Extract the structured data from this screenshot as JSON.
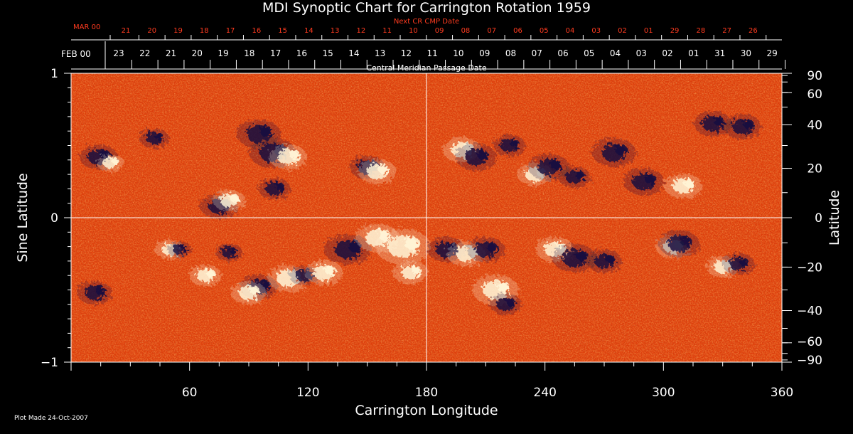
{
  "colors": {
    "background": "#000000",
    "axis": "#ffffff",
    "next_cr_text": "#ff3b1f",
    "map_base": "#e0400d",
    "positive_polarity": "#fff4d6",
    "negative_polarity": "#1a1040"
  },
  "chart_data": {
    "type": "heatmap",
    "title": "MDI Synoptic Chart for Carrington Rotation 1959",
    "xlabel": "Carrington Longitude",
    "ylabel_left": "Sine Latitude",
    "ylabel_right": "Latitude",
    "xlim": [
      0,
      360
    ],
    "ylim": [
      -1,
      1
    ],
    "x_ticks": [
      60,
      120,
      180,
      240,
      300,
      360
    ],
    "y_ticks_left": [
      {
        "value": 1,
        "label": "1"
      },
      {
        "value": 0,
        "label": "0"
      },
      {
        "value": -1,
        "label": "−1"
      }
    ],
    "y_ticks_right": [
      90,
      60,
      40,
      20,
      0,
      -20,
      -40,
      -60,
      -90
    ],
    "grid": {
      "zero_latitude_line": true,
      "central_meridian_line": 180
    },
    "top_axis_cmp": {
      "label": "Central Meridian Passage Date",
      "month_label": "FEB 00",
      "days": [
        "23",
        "22",
        "21",
        "20",
        "19",
        "18",
        "17",
        "16",
        "15",
        "14",
        "13",
        "12",
        "11",
        "10",
        "09",
        "08",
        "07",
        "06",
        "05",
        "04",
        "03",
        "02",
        "01",
        "31",
        "30",
        "29"
      ]
    },
    "top_axis_next": {
      "label": "Next CR CMP Date",
      "month_label": "MAR 00",
      "days": [
        "21",
        "20",
        "19",
        "18",
        "17",
        "16",
        "15",
        "14",
        "13",
        "12",
        "11",
        "10",
        "09",
        "08",
        "07",
        "06",
        "05",
        "04",
        "03",
        "02",
        "01",
        "29",
        "28",
        "27",
        "26"
      ]
    },
    "active_regions": [
      {
        "lon": 14,
        "sinlat": 0.42,
        "polarity": "negative",
        "size": 1.0
      },
      {
        "lon": 20,
        "sinlat": 0.38,
        "polarity": "positive",
        "size": 0.6
      },
      {
        "lon": 42,
        "sinlat": 0.55,
        "polarity": "negative",
        "size": 0.7
      },
      {
        "lon": 75,
        "sinlat": 0.08,
        "polarity": "negative",
        "size": 1.0
      },
      {
        "lon": 80,
        "sinlat": 0.12,
        "polarity": "positive",
        "size": 0.8
      },
      {
        "lon": 95,
        "sinlat": 0.58,
        "polarity": "negative",
        "size": 1.2
      },
      {
        "lon": 102,
        "sinlat": 0.45,
        "polarity": "negative",
        "size": 1.3
      },
      {
        "lon": 110,
        "sinlat": 0.42,
        "polarity": "positive",
        "size": 1.0
      },
      {
        "lon": 103,
        "sinlat": 0.2,
        "polarity": "negative",
        "size": 0.8
      },
      {
        "lon": 150,
        "sinlat": 0.35,
        "polarity": "negative",
        "size": 0.9
      },
      {
        "lon": 155,
        "sinlat": 0.32,
        "polarity": "positive",
        "size": 1.0
      },
      {
        "lon": 198,
        "sinlat": 0.47,
        "polarity": "positive",
        "size": 1.0
      },
      {
        "lon": 205,
        "sinlat": 0.42,
        "polarity": "negative",
        "size": 1.1
      },
      {
        "lon": 222,
        "sinlat": 0.5,
        "polarity": "negative",
        "size": 0.8
      },
      {
        "lon": 235,
        "sinlat": 0.3,
        "polarity": "positive",
        "size": 0.9
      },
      {
        "lon": 242,
        "sinlat": 0.35,
        "polarity": "negative",
        "size": 1.1
      },
      {
        "lon": 255,
        "sinlat": 0.28,
        "polarity": "negative",
        "size": 0.8
      },
      {
        "lon": 275,
        "sinlat": 0.45,
        "polarity": "negative",
        "size": 1.2
      },
      {
        "lon": 290,
        "sinlat": 0.25,
        "polarity": "negative",
        "size": 1.1
      },
      {
        "lon": 310,
        "sinlat": 0.22,
        "polarity": "positive",
        "size": 1.0
      },
      {
        "lon": 325,
        "sinlat": 0.65,
        "polarity": "negative",
        "size": 1.0
      },
      {
        "lon": 340,
        "sinlat": 0.63,
        "polarity": "negative",
        "size": 1.0
      },
      {
        "lon": 50,
        "sinlat": -0.22,
        "polarity": "positive",
        "size": 0.7
      },
      {
        "lon": 55,
        "sinlat": -0.22,
        "polarity": "negative",
        "size": 0.5
      },
      {
        "lon": 68,
        "sinlat": -0.4,
        "polarity": "positive",
        "size": 0.8
      },
      {
        "lon": 80,
        "sinlat": -0.24,
        "polarity": "negative",
        "size": 0.6
      },
      {
        "lon": 95,
        "sinlat": -0.48,
        "polarity": "negative",
        "size": 1.0
      },
      {
        "lon": 90,
        "sinlat": -0.52,
        "polarity": "positive",
        "size": 0.9
      },
      {
        "lon": 110,
        "sinlat": -0.42,
        "polarity": "positive",
        "size": 1.1
      },
      {
        "lon": 118,
        "sinlat": -0.4,
        "polarity": "negative",
        "size": 0.7
      },
      {
        "lon": 128,
        "sinlat": -0.38,
        "polarity": "positive",
        "size": 1.0
      },
      {
        "lon": 140,
        "sinlat": -0.22,
        "polarity": "negative",
        "size": 1.3
      },
      {
        "lon": 155,
        "sinlat": -0.14,
        "polarity": "positive",
        "size": 1.2
      },
      {
        "lon": 168,
        "sinlat": -0.2,
        "polarity": "positive",
        "size": 1.6
      },
      {
        "lon": 172,
        "sinlat": -0.38,
        "polarity": "positive",
        "size": 0.9
      },
      {
        "lon": 190,
        "sinlat": -0.22,
        "polarity": "negative",
        "size": 1.0
      },
      {
        "lon": 200,
        "sinlat": -0.25,
        "polarity": "positive",
        "size": 1.0
      },
      {
        "lon": 210,
        "sinlat": -0.22,
        "polarity": "negative",
        "size": 1.0
      },
      {
        "lon": 215,
        "sinlat": -0.5,
        "polarity": "positive",
        "size": 1.3
      },
      {
        "lon": 220,
        "sinlat": -0.6,
        "polarity": "negative",
        "size": 0.8
      },
      {
        "lon": 245,
        "sinlat": -0.22,
        "polarity": "positive",
        "size": 1.0
      },
      {
        "lon": 255,
        "sinlat": -0.28,
        "polarity": "negative",
        "size": 1.2
      },
      {
        "lon": 270,
        "sinlat": -0.3,
        "polarity": "negative",
        "size": 0.9
      },
      {
        "lon": 305,
        "sinlat": -0.2,
        "polarity": "positive",
        "size": 0.9
      },
      {
        "lon": 308,
        "sinlat": -0.18,
        "polarity": "negative",
        "size": 1.1
      },
      {
        "lon": 330,
        "sinlat": -0.34,
        "polarity": "positive",
        "size": 0.8
      },
      {
        "lon": 338,
        "sinlat": -0.32,
        "polarity": "negative",
        "size": 0.8
      },
      {
        "lon": 12,
        "sinlat": -0.52,
        "polarity": "negative",
        "size": 0.9
      }
    ]
  },
  "footer": {
    "plot_made": "Plot Made 24-Oct-2007"
  }
}
